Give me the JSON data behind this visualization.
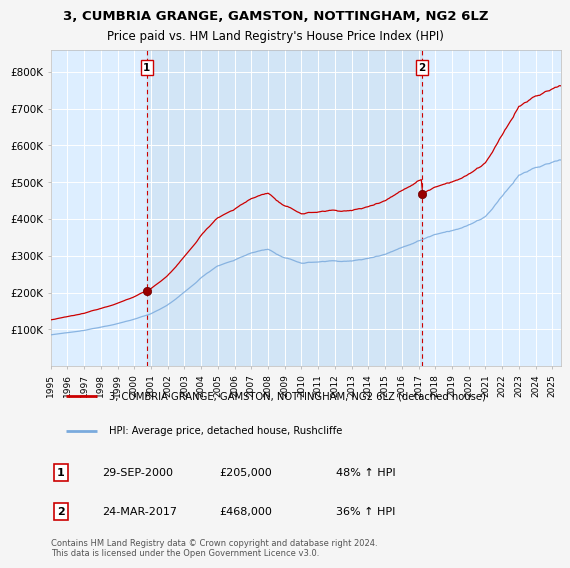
{
  "title": "3, CUMBRIA GRANGE, GAMSTON, NOTTINGHAM, NG2 6LZ",
  "subtitle": "Price paid vs. HM Land Registry's House Price Index (HPI)",
  "legend_line1": "3, CUMBRIA GRANGE, GAMSTON, NOTTINGHAM, NG2 6LZ (detached house)",
  "legend_line2": "HPI: Average price, detached house, Rushcliffe",
  "annotation1_date": "29-SEP-2000",
  "annotation1_price": "£205,000",
  "annotation1_hpi": "48% ↑ HPI",
  "annotation2_date": "24-MAR-2017",
  "annotation2_price": "£468,000",
  "annotation2_hpi": "36% ↑ HPI",
  "footer": "Contains HM Land Registry data © Crown copyright and database right 2024.\nThis data is licensed under the Open Government Licence v3.0.",
  "ylim": [
    0,
    860000
  ],
  "yticks": [
    100000,
    200000,
    300000,
    400000,
    500000,
    600000,
    700000,
    800000
  ],
  "ytick_labels": [
    "£100K",
    "£200K",
    "£300K",
    "£400K",
    "£500K",
    "£600K",
    "£700K",
    "£800K"
  ],
  "sale1_year": 2000.75,
  "sale1_price": 205000,
  "sale2_year": 2017.22,
  "sale2_price": 468000,
  "red_color": "#cc0000",
  "blue_color": "#7aaadd",
  "bg_color": "#ddeeff",
  "fig_bg": "#f5f5f5",
  "xmin": 1995.0,
  "xmax": 2025.5
}
